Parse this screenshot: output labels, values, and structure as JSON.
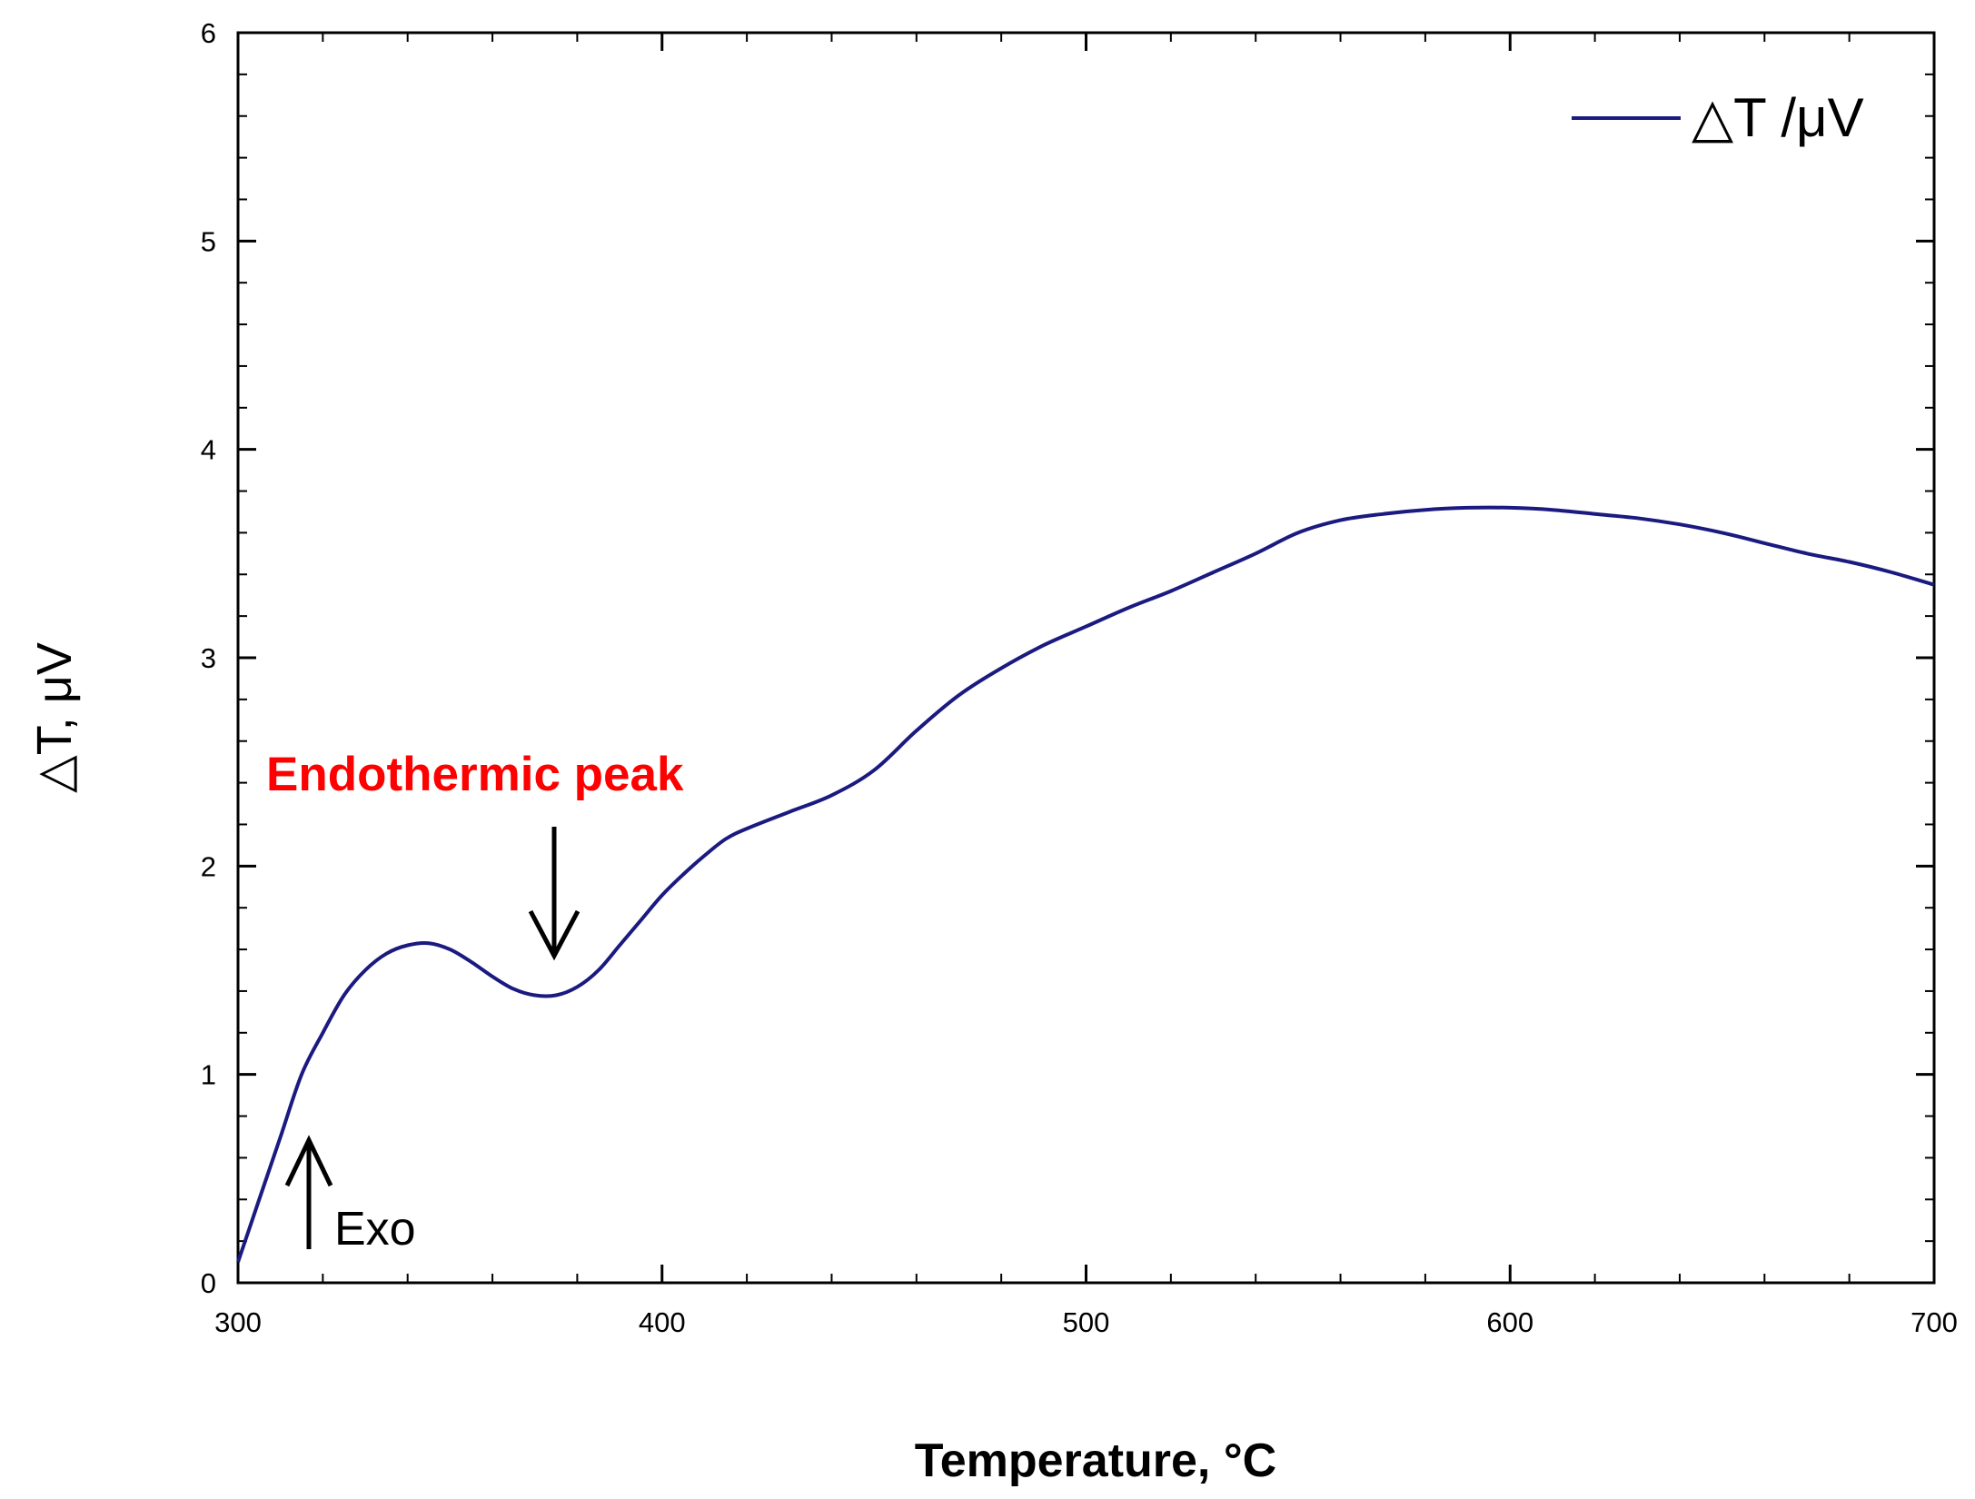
{
  "chart_data": {
    "type": "line",
    "title": "",
    "xlabel": "Temperature, °C",
    "ylabel": "△T, μV",
    "xlim": [
      300,
      700
    ],
    "ylim": [
      0,
      6
    ],
    "x_ticks": [
      300,
      400,
      500,
      600,
      700
    ],
    "y_ticks": [
      0,
      1,
      2,
      3,
      4,
      5,
      6
    ],
    "grid": false,
    "legend": {
      "position": "top-right",
      "entries": [
        "△T /μV"
      ]
    },
    "series": [
      {
        "name": "△T /μV",
        "color": "#1a1a80",
        "x": [
          300,
          305,
          310,
          315,
          320,
          325,
          330,
          335,
          340,
          345,
          350,
          355,
          360,
          365,
          370,
          375,
          380,
          385,
          390,
          395,
          400,
          405,
          410,
          415,
          420,
          430,
          440,
          450,
          460,
          470,
          480,
          490,
          500,
          510,
          520,
          530,
          540,
          550,
          560,
          570,
          580,
          590,
          600,
          610,
          620,
          630,
          640,
          650,
          660,
          670,
          680,
          690,
          700
        ],
        "y": [
          0.1,
          0.4,
          0.7,
          1.0,
          1.2,
          1.38,
          1.5,
          1.58,
          1.62,
          1.63,
          1.6,
          1.54,
          1.47,
          1.41,
          1.38,
          1.38,
          1.42,
          1.5,
          1.62,
          1.74,
          1.86,
          1.96,
          2.05,
          2.13,
          2.18,
          2.26,
          2.34,
          2.46,
          2.65,
          2.82,
          2.95,
          3.06,
          3.15,
          3.24,
          3.32,
          3.41,
          3.5,
          3.6,
          3.66,
          3.69,
          3.71,
          3.72,
          3.72,
          3.71,
          3.69,
          3.67,
          3.64,
          3.6,
          3.55,
          3.5,
          3.46,
          3.41,
          3.35
        ]
      }
    ],
    "annotations": [
      {
        "text": "Endothermic peak",
        "color": "#ff0000",
        "arrow": "down",
        "points_to_x": 374
      },
      {
        "text": "Exo",
        "color": "#000000",
        "arrow": "up"
      }
    ]
  }
}
